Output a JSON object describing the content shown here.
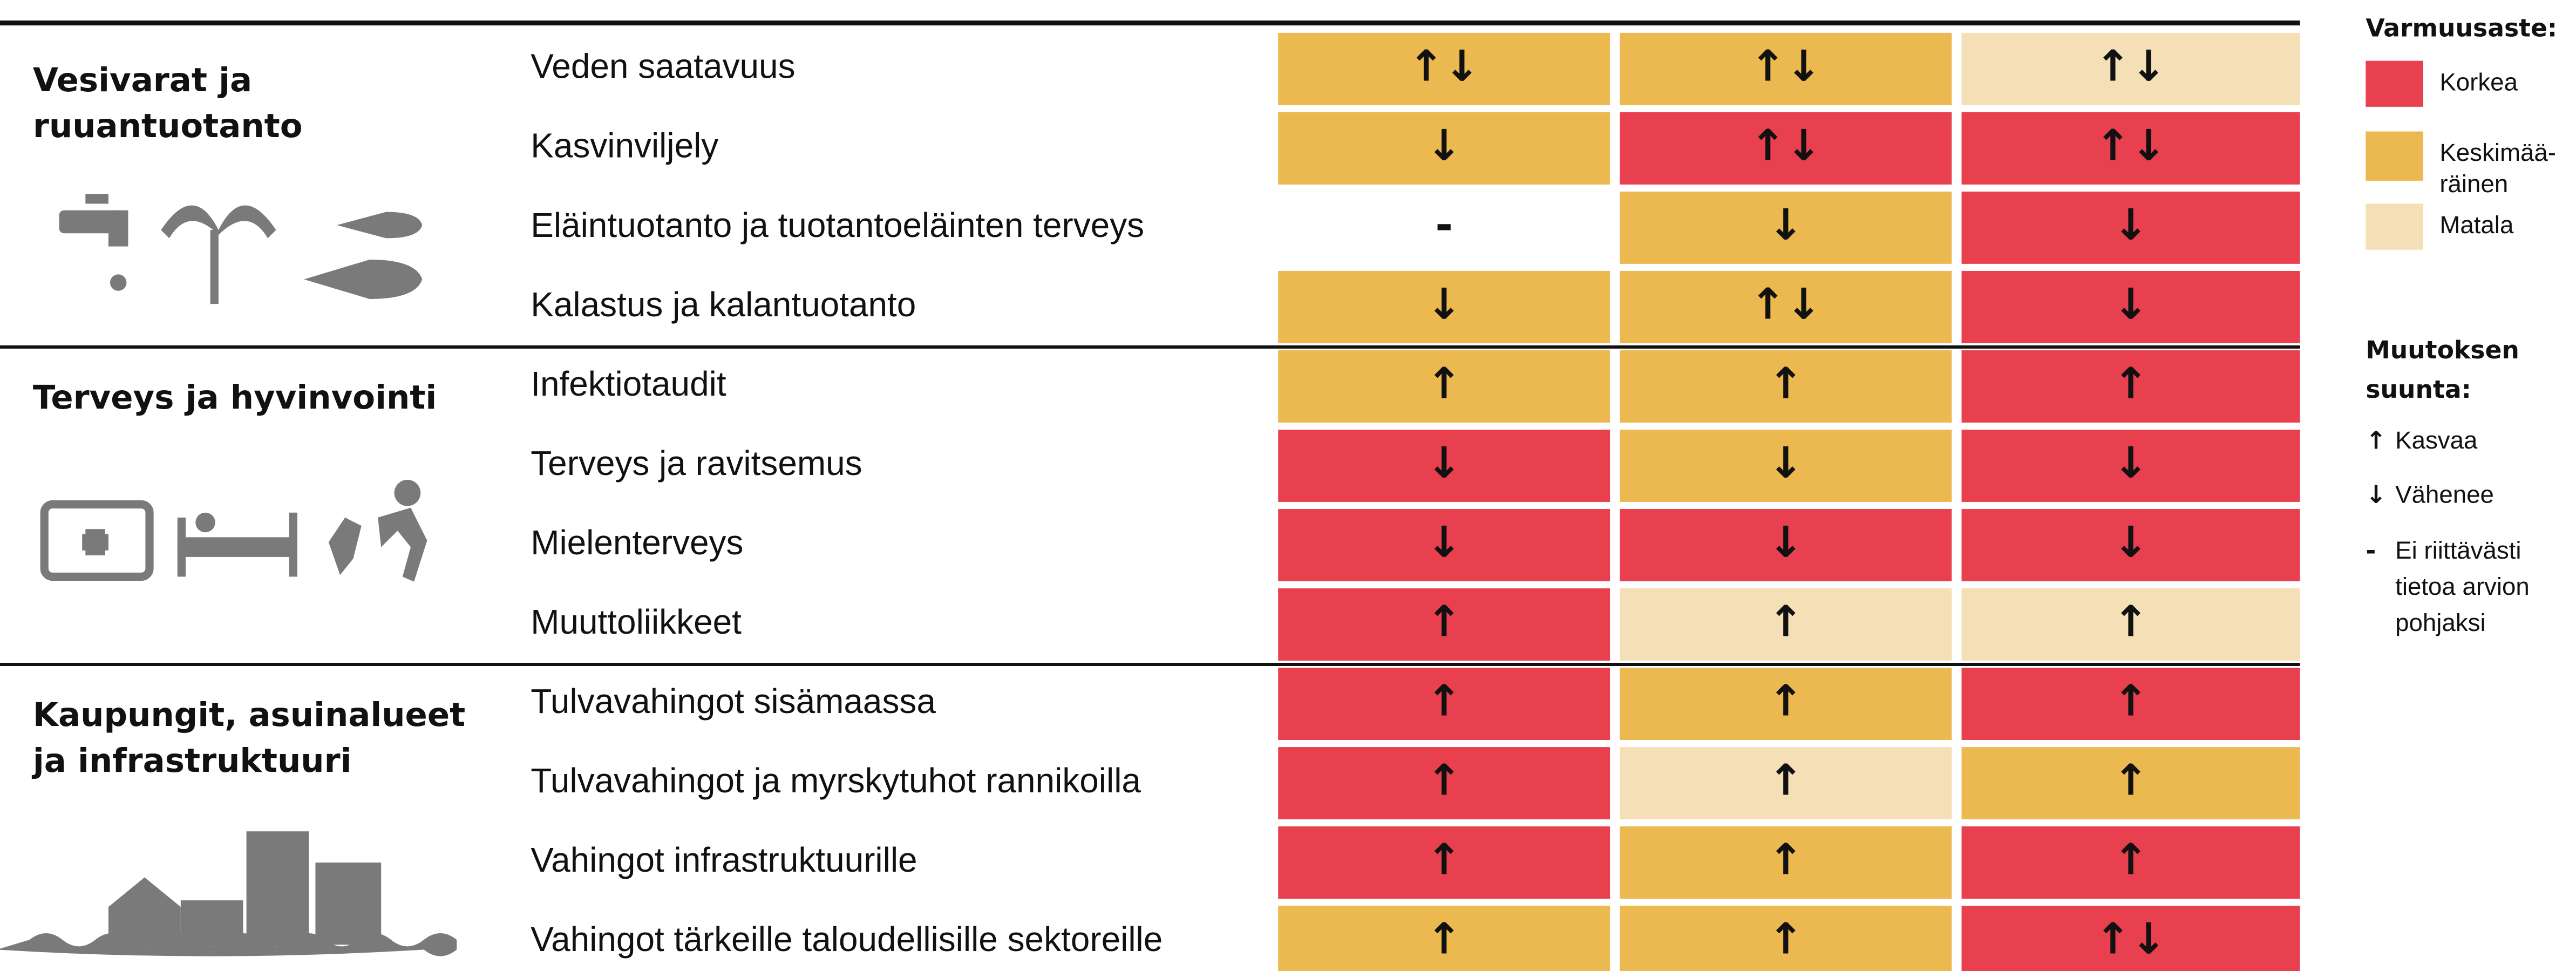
{
  "groups": [
    {
      "title_lines": [
        "Vesivarat ja",
        "ruuantuotanto"
      ],
      "rows": [
        {
          "label": "Veden saatavuus",
          "cells": [
            {
              "color": "#ebb94f",
              "text": "↑↓"
            },
            {
              "color": "#ebb94f",
              "text": "↑↓"
            },
            {
              "color": "#f5dfb6",
              "text": "↑↓"
            }
          ]
        },
        {
          "label": "Kasvinviljely",
          "cells": [
            {
              "color": "#ebb94f",
              "text": "↓"
            },
            {
              "color": "#e8404f",
              "text": "↑↓"
            },
            {
              "color": "#e8404f",
              "text": "↑↓"
            }
          ]
        },
        {
          "label": "Eläintuotanto ja tuotantoeläinten terveys",
          "cells": [
            {
              "color": null,
              "text": "-"
            },
            {
              "color": "#ebb94f",
              "text": "↓"
            },
            {
              "color": "#e8404f",
              "text": "↓"
            }
          ]
        },
        {
          "label": "Kalastus ja kalantuotanto",
          "cells": [
            {
              "color": "#ebb94f",
              "text": "↓"
            },
            {
              "color": "#ebb94f",
              "text": "↑↓"
            },
            {
              "color": "#e8404f",
              "text": "↓"
            }
          ]
        }
      ]
    },
    {
      "title_lines": [
        "Terveys ja hyvinvointi"
      ],
      "rows": [
        {
          "label": "Infektiotaudit",
          "cells": [
            {
              "color": "#ebb94f",
              "text": "↑"
            },
            {
              "color": "#ebb94f",
              "text": "↑"
            },
            {
              "color": "#e8404f",
              "text": "↑"
            }
          ]
        },
        {
          "label": "Terveys ja ravitsemus",
          "cells": [
            {
              "color": "#e8404f",
              "text": "↓"
            },
            {
              "color": "#ebb94f",
              "text": "↓"
            },
            {
              "color": "#e8404f",
              "text": "↓"
            }
          ]
        },
        {
          "label": "Mielenterveys",
          "cells": [
            {
              "color": "#e8404f",
              "text": "↓"
            },
            {
              "color": "#e8404f",
              "text": "↓"
            },
            {
              "color": "#e8404f",
              "text": "↓"
            }
          ]
        },
        {
          "label": "Muuttoliikkeet",
          "cells": [
            {
              "color": "#e8404f",
              "text": "↑"
            },
            {
              "color": "#f5dfb6",
              "text": "↑"
            },
            {
              "color": "#f5dfb6",
              "text": "↑"
            }
          ]
        }
      ]
    },
    {
      "title_lines": [
        "Kaupungit, asuinalueet",
        "ja infrastruktuuri"
      ],
      "rows": [
        {
          "label": "Tulvavahingot sisämaassa",
          "cells": [
            {
              "color": "#e8404f",
              "text": "↑"
            },
            {
              "color": "#ebb94f",
              "text": "↑"
            },
            {
              "color": "#e8404f",
              "text": "↑"
            }
          ]
        },
        {
          "label": "Tulvavahingot ja myrskytuhot rannikoilla",
          "cells": [
            {
              "color": "#e8404f",
              "text": "↑"
            },
            {
              "color": "#f5dfb6",
              "text": "↑"
            },
            {
              "color": "#ebb94f",
              "text": "↑"
            }
          ]
        },
        {
          "label": "Vahingot infrastruktuurille",
          "cells": [
            {
              "color": "#e8404f",
              "text": "↑"
            },
            {
              "color": "#ebb94f",
              "text": "↑"
            },
            {
              "color": "#e8404f",
              "text": "↑"
            }
          ]
        },
        {
          "label": "Vahingot tärkeille taloudellisille sektoreille",
          "cells": [
            {
              "color": "#ebb94f",
              "text": "↑"
            },
            {
              "color": "#ebb94f",
              "text": "↑"
            },
            {
              "color": "#e8404f",
              "text": "↑↓"
            }
          ]
        }
      ]
    }
  ],
  "white_text_on": "#e8404f",
  "legend": {
    "confidence_title": "Varmuusaste:",
    "levels": [
      {
        "color": "#e8404f",
        "lines": [
          "Korkea"
        ]
      },
      {
        "color": "#ebb94f",
        "lines": [
          "Keskimää-",
          "räinen"
        ]
      },
      {
        "color": "#f5dfb6",
        "lines": [
          "Matala"
        ]
      }
    ],
    "direction_title_lines": [
      "Muutoksen",
      "suunta:"
    ],
    "directions": [
      {
        "symbol": "↑",
        "lines": [
          "Kasvaa"
        ]
      },
      {
        "symbol": "↓",
        "lines": [
          "Vähenee"
        ]
      },
      {
        "symbol": "-",
        "lines": [
          "Ei riittävästi",
          "tietoa arvion",
          "pohjaksi"
        ]
      }
    ]
  }
}
